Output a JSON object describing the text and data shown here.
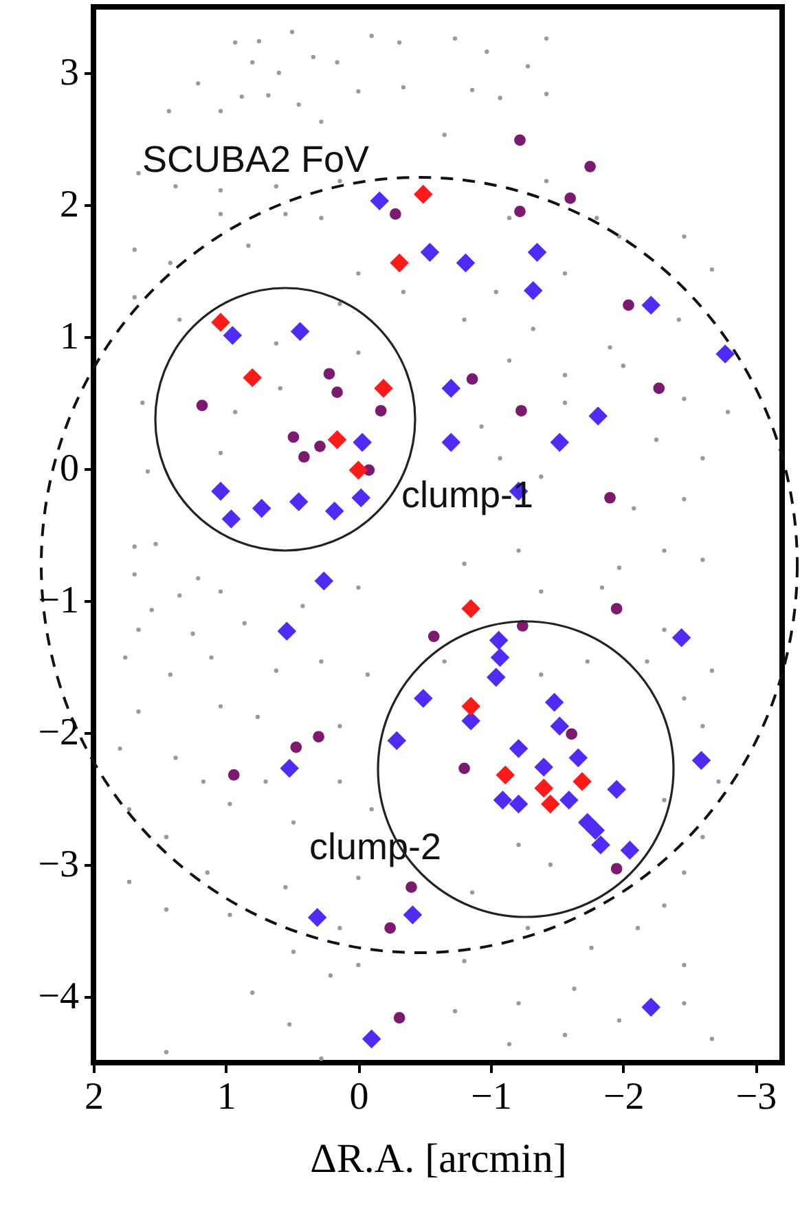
{
  "chart_data": {
    "type": "scatter",
    "xlabel": "ΔR.A. [arcmin]",
    "xlim": [
      2,
      -3.2
    ],
    "ylim": [
      -4.5,
      3.5
    ],
    "xticks": [
      2,
      1,
      0,
      -1,
      -2,
      -3
    ],
    "yticks": [
      -4,
      -3,
      -2,
      -1,
      0,
      1,
      2,
      3
    ],
    "series": [
      {
        "marker": "circle",
        "color": "#9a9a9a",
        "x": [
          0.93,
          0.75,
          0.5,
          -0.1,
          -0.31,
          0.8,
          0.6,
          0.34,
          0.16,
          1.21,
          0.88,
          0.68,
          0.0,
          -0.34,
          1.43,
          1.04,
          0.45,
          0.28,
          1.66,
          1.38,
          1.04,
          0.62,
          0.14,
          1.69,
          1.42,
          1.04,
          0.55,
          0.28,
          0.83,
          0.0,
          -0.34,
          1.69,
          1.35,
          0.14,
          1.63,
          0.62,
          0.0,
          0.93,
          0.59,
          1.59,
          1.04,
          -0.73,
          -0.97,
          -1.28,
          -1.42,
          -0.86,
          -1.07,
          -1.42,
          -0.65,
          -1.42,
          -1.14,
          -1.8,
          -1.97,
          -2.46,
          -2.67,
          -1.56,
          -1.04,
          -0.8,
          -1.32,
          -1.9,
          -2.42,
          -1.14,
          -1.56,
          -2.0,
          -2.46,
          -2.79,
          -0.93,
          -1.56,
          -2.25,
          -2.6,
          -1.38,
          -2.08,
          -2.46,
          -1.07,
          1.69,
          1.53,
          1.21,
          1.69,
          1.35,
          1.04,
          0.0,
          1.56,
          1.66,
          1.25,
          0.86,
          0.42,
          1.11,
          1.76,
          1.42,
          0.62,
          0.28,
          -0.07,
          1.66,
          1.04,
          0.14,
          0.76,
          1.8,
          1.38,
          1.17,
          0.7,
          0.14,
          1.73,
          0.97,
          1.45,
          0.49,
          -0.1,
          1.73,
          1.14,
          0.55,
          0.0,
          1.45,
          0.97,
          0.14,
          0.49,
          0.0,
          0.8,
          0.21,
          0.52,
          1.45,
          0.28,
          -0.8,
          -1.21,
          -1.97,
          -2.31,
          -2.6,
          -1.38,
          -1.84,
          -2.31,
          -2.67,
          -1.73,
          -2.18,
          -2.46,
          -2.6,
          -1.38,
          -0.65,
          -2.72,
          -2.6,
          -2.31,
          -1.21,
          -1.45,
          -2.46,
          -0.86,
          -2.31,
          -1.28,
          -2.11,
          -1.76,
          -2.46,
          -0.8,
          -1.63,
          -1.21,
          -0.73,
          -2.46,
          -1.97,
          -2.67,
          -1.14,
          -1.56
        ],
        "values": [
          3.23,
          3.24,
          3.31,
          3.28,
          3.23,
          3.08,
          3.0,
          3.12,
          3.08,
          2.92,
          2.82,
          2.83,
          2.86,
          2.89,
          2.71,
          2.71,
          2.76,
          2.63,
          2.24,
          2.14,
          2.11,
          2.14,
          2.18,
          1.66,
          1.56,
          1.93,
          1.93,
          1.9,
          1.69,
          1.48,
          1.34,
          1.3,
          1.13,
          1.25,
          0.5,
          0.95,
          0.88,
          0.43,
          0.61,
          -0.02,
          0.12,
          3.26,
          3.16,
          3.05,
          3.26,
          2.87,
          2.81,
          2.84,
          2.53,
          2.18,
          1.9,
          1.9,
          1.76,
          1.76,
          1.51,
          1.48,
          1.34,
          1.13,
          1.06,
          0.92,
          1.13,
          0.82,
          0.71,
          0.78,
          0.53,
          0.43,
          0.32,
          0.5,
          0.22,
          0.08,
          -0.06,
          -0.3,
          -0.23,
          0.08,
          -0.59,
          -0.57,
          -0.83,
          -0.8,
          -0.96,
          -0.93,
          -0.9,
          -1.07,
          -1.22,
          -1.25,
          -1.17,
          -1.04,
          -1.43,
          -1.43,
          -1.56,
          -1.53,
          -1.46,
          -1.56,
          -1.84,
          -1.8,
          -1.95,
          -1.88,
          -2.12,
          -2.19,
          -2.37,
          -2.37,
          -2.37,
          -2.58,
          -2.54,
          -2.79,
          -2.68,
          -2.58,
          -3.13,
          -3.06,
          -3.17,
          -3.1,
          -3.34,
          -3.38,
          -3.48,
          -3.66,
          -3.76,
          -3.97,
          -3.84,
          -4.21,
          -4.42,
          -4.47,
          -0.72,
          -0.62,
          -0.75,
          -0.62,
          -0.69,
          -0.93,
          -0.9,
          -1.22,
          -1.53,
          -1.46,
          -1.46,
          -1.74,
          -1.95,
          -1.56,
          -1.46,
          -2.37,
          -2.79,
          -2.51,
          -2.85,
          -3.0,
          -3.06,
          -3.21,
          -3.31,
          -3.48,
          -3.48,
          -3.63,
          -3.76,
          -3.73,
          -3.94,
          -4.05,
          -4.11,
          -4.05,
          -4.18,
          -4.32,
          -4.36,
          -4.29
        ]
      },
      {
        "marker": "circle",
        "color": "#7b1a6f",
        "x": [
          -0.28,
          1.18,
          0.22,
          0.16,
          -0.17,
          0.49,
          0.41,
          0.29,
          -0.08,
          -1.22,
          -1.75,
          -1.6,
          -1.22,
          -2.04,
          -0.86,
          -2.27,
          -1.23,
          -1.9,
          -0.57,
          0.3,
          0.47,
          0.94,
          -0.4,
          -0.24,
          -0.31,
          -1.95,
          -1.24,
          -0.8,
          -1.61,
          -1.95
        ],
        "values": [
          1.93,
          0.48,
          0.72,
          0.58,
          0.44,
          0.24,
          0.09,
          0.17,
          -0.01,
          2.49,
          2.29,
          2.05,
          1.95,
          1.24,
          0.68,
          0.61,
          0.44,
          -0.22,
          -1.27,
          -2.03,
          -2.11,
          -2.32,
          -3.17,
          -3.48,
          -4.16,
          -1.06,
          -1.19,
          -2.27,
          -2.01,
          -3.03
        ]
      },
      {
        "marker": "diamond",
        "color": "#4f2bf5",
        "x": [
          -0.16,
          -0.54,
          -0.81,
          -1.35,
          -1.32,
          0.44,
          0.95,
          -2.21,
          -2.77,
          -0.7,
          -0.7,
          -1.52,
          -1.81,
          -1.21,
          -0.03,
          1.04,
          0.96,
          0.73,
          0.45,
          0.18,
          -0.02,
          0.26,
          0.54,
          -0.49,
          -0.29,
          0.52,
          0.31,
          -0.41,
          -0.1,
          -2.21,
          -2.44,
          -2.59,
          -1.06,
          -1.07,
          -1.04,
          -0.85,
          -1.48,
          -1.52,
          -1.21,
          -1.4,
          -1.66,
          -1.09,
          -1.21,
          -1.59,
          -1.73,
          -1.83,
          -1.95,
          -2.05,
          -1.79
        ],
        "values": [
          2.03,
          1.64,
          1.56,
          1.64,
          1.35,
          1.04,
          1.01,
          1.24,
          0.87,
          0.61,
          0.2,
          0.2,
          0.4,
          -0.17,
          0.2,
          -0.17,
          -0.38,
          -0.3,
          -0.25,
          -0.32,
          -0.22,
          -0.85,
          -1.23,
          -1.74,
          -2.06,
          -2.27,
          -3.4,
          -3.38,
          -4.32,
          -4.08,
          -1.28,
          -2.21,
          -1.3,
          -1.43,
          -1.58,
          -1.91,
          -1.77,
          -1.95,
          -2.12,
          -2.26,
          -2.19,
          -2.51,
          -2.54,
          -2.51,
          -2.68,
          -2.85,
          -2.43,
          -2.89,
          -2.74
        ]
      },
      {
        "marker": "diamond",
        "color": "#ff1a1a",
        "x": [
          1.04,
          0.8,
          -0.49,
          -0.31,
          -0.19,
          0.16,
          0.0,
          -0.85,
          -0.85,
          -1.11,
          -1.4,
          -1.45,
          -1.69
        ],
        "values": [
          1.11,
          0.69,
          2.08,
          1.56,
          0.61,
          0.22,
          -0.01,
          -1.06,
          -1.8,
          -2.32,
          -2.42,
          -2.54,
          -2.37
        ]
      }
    ],
    "annotations": [
      "SCUBA2 FoV",
      "clump-1",
      "clump-2"
    ]
  }
}
